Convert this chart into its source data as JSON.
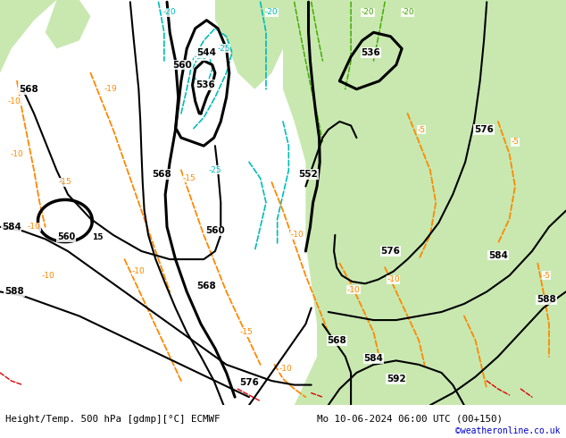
{
  "title_left": "Height/Temp. 500 hPa [gdmp][°C] ECMWF",
  "title_right": "Mo 10-06-2024 06:00 UTC (00+150)",
  "copyright": "©weatheronline.co.uk",
  "bg_gray": "#d2d2d2",
  "bg_light": "#e8e8e8",
  "green": "#c8e8b0",
  "green2": "#b8d898",
  "fig_width": 6.34,
  "fig_height": 4.9,
  "dpi": 100
}
